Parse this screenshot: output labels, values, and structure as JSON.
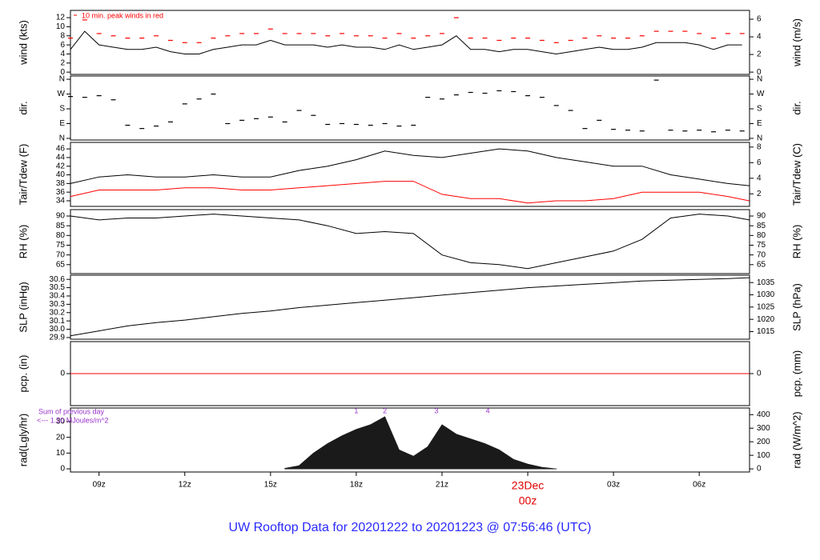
{
  "title": "UW Rooftop Data for 20201222  to  20201223 @ 07:56:46  (UTC)",
  "chart_data": [
    {
      "type": "line",
      "ylabel": "wind (kts)",
      "y2label": "wind (m/s)",
      "annotation": "10 min. peak winds in red",
      "xlim": [
        8,
        31.76
      ],
      "ylim": [
        -0.5,
        13.6
      ],
      "yticks": [
        0,
        2,
        4,
        6,
        8,
        10,
        12
      ],
      "y2lim": [
        -0.26,
        7.0
      ],
      "y2ticks": [
        0,
        2,
        4,
        6
      ],
      "series": [
        {
          "color": "#000000",
          "x": [
            8,
            8.5,
            9,
            9.5,
            10,
            10.5,
            11,
            11.5,
            12,
            12.5,
            13,
            13.5,
            14,
            14.5,
            15,
            15.5,
            16,
            16.5,
            17,
            17.5,
            18,
            18.5,
            19,
            19.5,
            20,
            20.5,
            21,
            21.5,
            22,
            22.5,
            23,
            23.5,
            24,
            24.5,
            25,
            25.5,
            26,
            26.5,
            27,
            27.5,
            28,
            28.5,
            29,
            29.5,
            30,
            30.5,
            31,
            31.5
          ],
          "values": [
            5,
            9,
            6,
            5.5,
            5,
            5,
            5.5,
            4.5,
            4,
            4,
            5,
            5.5,
            6,
            6,
            7,
            6,
            6,
            6,
            5.5,
            6,
            5.5,
            5.5,
            5,
            6,
            5,
            5.5,
            6,
            8,
            5,
            5,
            4.5,
            5,
            5,
            4.5,
            4,
            4.5,
            5,
            5.5,
            5,
            5,
            5.5,
            6.5,
            6.5,
            6.5,
            6,
            5,
            6,
            6
          ]
        },
        {
          "color": "#ff0000",
          "marker": "dash",
          "x": [
            8,
            8.5,
            9,
            9.5,
            10,
            10.5,
            11,
            11.5,
            12,
            12.5,
            13,
            13.5,
            14,
            14.5,
            15,
            15.5,
            16,
            16.5,
            17,
            17.5,
            18,
            18.5,
            19,
            19.5,
            20,
            20.5,
            21,
            21.5,
            22,
            22.5,
            23,
            23.5,
            24,
            24.5,
            25,
            25.5,
            26,
            26.5,
            27,
            27.5,
            28,
            28.5,
            29,
            29.5,
            30,
            30.5,
            31,
            31.5
          ],
          "values": [
            7.5,
            11.5,
            8.5,
            8,
            7.5,
            7.5,
            8,
            7,
            6.5,
            6.5,
            7.5,
            8,
            8.5,
            8.5,
            9.5,
            8.5,
            8.5,
            8.5,
            8,
            8.5,
            8,
            8,
            7.5,
            8.5,
            7.5,
            8,
            8.5,
            12,
            7.5,
            7.5,
            7,
            7.5,
            7.5,
            7,
            6.5,
            7,
            7.5,
            8,
            7.5,
            7.5,
            8,
            9,
            9,
            9,
            8.5,
            7.5,
            8.5,
            8.5
          ]
        }
      ]
    },
    {
      "type": "scatter",
      "ylabel": "dir.",
      "y2label": "dir.",
      "xlim": [
        8,
        31.76
      ],
      "ylim": [
        -10,
        380
      ],
      "yticks": [
        {
          "value": 0,
          "label": "N"
        },
        {
          "value": 90,
          "label": "E"
        },
        {
          "value": 180,
          "label": "S"
        },
        {
          "value": 270,
          "label": "W"
        },
        {
          "value": 360,
          "label": "N"
        }
      ],
      "y2lim": [
        -10,
        380
      ],
      "y2ticks": [
        {
          "value": 0,
          "label": "N"
        },
        {
          "value": 90,
          "label": "E"
        },
        {
          "value": 180,
          "label": "S"
        },
        {
          "value": 270,
          "label": "W"
        },
        {
          "value": 360,
          "label": "N"
        }
      ],
      "series": [
        {
          "color": "#000000",
          "marker": "dash",
          "x": [
            8,
            8.5,
            9,
            9.5,
            10,
            10.5,
            11,
            11.5,
            12,
            12.5,
            13,
            13.5,
            14,
            14.5,
            15,
            15.5,
            16,
            16.5,
            17,
            17.5,
            18,
            18.5,
            19,
            19.5,
            20,
            20.5,
            21,
            21.5,
            22,
            22.5,
            23,
            23.5,
            24,
            24.5,
            25,
            25.5,
            26,
            26.5,
            27,
            27.5,
            28,
            28.5,
            29,
            29.5,
            30,
            30.5,
            31,
            31.5
          ],
          "values": [
            255,
            250,
            260,
            235,
            80,
            60,
            75,
            100,
            210,
            240,
            270,
            90,
            110,
            120,
            130,
            100,
            170,
            140,
            85,
            90,
            85,
            80,
            90,
            75,
            80,
            250,
            240,
            265,
            280,
            275,
            290,
            285,
            260,
            250,
            200,
            170,
            60,
            110,
            55,
            50,
            45,
            355,
            50,
            45,
            50,
            40,
            50,
            45
          ]
        }
      ]
    },
    {
      "type": "line",
      "ylabel": "Tair/Tdew (F)",
      "y2label": "Tair/Tdew (C)",
      "xlim": [
        8,
        31.76
      ],
      "ylim": [
        32.7,
        47.5
      ],
      "yticks": [
        34,
        36,
        38,
        40,
        42,
        44,
        46
      ],
      "y2lim": [
        0.39,
        8.6
      ],
      "y2ticks": [
        2,
        4,
        6,
        8
      ],
      "series": [
        {
          "color": "#000000",
          "x": [
            8,
            9,
            10,
            11,
            12,
            13,
            14,
            15,
            16,
            17,
            18,
            19,
            20,
            21,
            22,
            23,
            24,
            25,
            26,
            27,
            28,
            29,
            30,
            31,
            31.75
          ],
          "values": [
            38,
            39.5,
            40,
            39.5,
            39.5,
            40,
            39.5,
            39.5,
            41,
            42,
            43.5,
            45.5,
            44.5,
            44,
            45,
            46,
            45.5,
            44,
            43,
            42,
            42,
            40,
            39,
            38,
            37.5
          ]
        },
        {
          "color": "#ff0000",
          "x": [
            8,
            9,
            10,
            11,
            12,
            13,
            14,
            15,
            16,
            17,
            18,
            19,
            20,
            21,
            22,
            23,
            24,
            25,
            26,
            27,
            28,
            29,
            30,
            31,
            31.75
          ],
          "values": [
            35,
            36.5,
            36.5,
            36.5,
            37,
            37,
            36.5,
            36.5,
            37,
            37.5,
            38,
            38.5,
            38.5,
            35.5,
            34.5,
            34.5,
            33.5,
            34,
            34,
            34.5,
            36,
            36,
            36,
            35,
            34
          ]
        }
      ]
    },
    {
      "type": "line",
      "ylabel": "RH (%)",
      "y2label": "RH (%)",
      "xlim": [
        8,
        31.76
      ],
      "ylim": [
        60.4,
        93.3
      ],
      "yticks": [
        65,
        70,
        75,
        80,
        85,
        90
      ],
      "y2lim": [
        60.4,
        93.3
      ],
      "y2ticks": [
        65,
        70,
        75,
        80,
        85,
        90
      ],
      "series": [
        {
          "color": "#000000",
          "x": [
            8,
            9,
            10,
            11,
            12,
            13,
            14,
            15,
            16,
            17,
            18,
            19,
            20,
            21,
            22,
            23,
            24,
            25,
            26,
            27,
            28,
            29,
            30,
            31,
            31.75
          ],
          "values": [
            90,
            88,
            89,
            89,
            90,
            91,
            90,
            89,
            88,
            85,
            81,
            82,
            81,
            70,
            66,
            65,
            63,
            66,
            69,
            72,
            78,
            89,
            91,
            90,
            88
          ]
        }
      ]
    },
    {
      "type": "line",
      "ylabel": "SLP (inHg)",
      "y2label": "SLP (hPa)",
      "xlim": [
        8,
        31.76
      ],
      "ylim": [
        29.88,
        30.65
      ],
      "yticks": [
        {
          "value": 29.9,
          "label": "29.9"
        },
        {
          "value": 30,
          "label": "30.0"
        },
        30.1,
        30.2,
        30.3,
        30.4,
        30.5,
        30.6
      ],
      "y2lim": [
        1011.9,
        1038.0
      ],
      "y2ticks": [
        1015,
        1020,
        1025,
        1030,
        1035
      ],
      "series": [
        {
          "color": "#000000",
          "x": [
            8,
            9,
            10,
            11,
            12,
            13,
            14,
            15,
            16,
            17,
            18,
            19,
            20,
            21,
            22,
            23,
            24,
            25,
            26,
            27,
            28,
            29,
            30,
            31,
            31.75
          ],
          "values": [
            29.92,
            29.98,
            30.04,
            30.08,
            30.11,
            30.15,
            30.19,
            30.22,
            30.26,
            30.29,
            30.32,
            30.35,
            30.38,
            30.41,
            30.44,
            30.47,
            30.5,
            30.52,
            30.54,
            30.56,
            30.58,
            30.59,
            30.6,
            30.61,
            30.62
          ]
        }
      ]
    },
    {
      "type": "line",
      "ylabel": "pcp. (in)",
      "y2label": "pcp. (mm)",
      "xlim": [
        8,
        31.76
      ],
      "ylim": [
        -1,
        1
      ],
      "yticks": [
        0
      ],
      "y2lim": [
        -25.4,
        25.4
      ],
      "y2ticks": [
        0
      ],
      "series": [
        {
          "color": "#ff0000",
          "x": [
            8,
            31.76
          ],
          "values": [
            0,
            0
          ]
        }
      ]
    },
    {
      "type": "area",
      "ylabel": "rad(Lgly/hr)",
      "y2label": "rad (W/m^2)",
      "annotations": [
        "Sum of previous day",
        "<--- 1.50 MJoules/m^2"
      ],
      "markers": {
        "x": [
          18,
          19,
          20.8,
          22.6
        ],
        "labels": [
          1,
          2,
          3,
          4
        ]
      },
      "xlim": [
        8,
        31.76
      ],
      "ylim": [
        -2,
        38.6
      ],
      "yticks": [
        0,
        10,
        20,
        30
      ],
      "y2lim": [
        -23,
        449
      ],
      "y2ticks": [
        0,
        100,
        200,
        300,
        400
      ],
      "xticks": [
        {
          "value": 9,
          "label": "09z"
        },
        {
          "value": 12,
          "label": "12z"
        },
        {
          "value": 15,
          "label": "15z"
        },
        {
          "value": 18,
          "label": "18z"
        },
        {
          "value": 21,
          "label": "21z"
        },
        {
          "value": 24,
          "label": "00z"
        },
        {
          "value": 27,
          "label": "03z"
        },
        {
          "value": 30,
          "label": "06z"
        }
      ],
      "date": {
        "value": 24,
        "label": "23Dec"
      },
      "series": [
        {
          "color": "#1a1a1a",
          "x": [
            15.5,
            16,
            16.5,
            17,
            17.5,
            18,
            18.5,
            19,
            19.5,
            20,
            20.5,
            21,
            21.5,
            22,
            22.5,
            23,
            23.5,
            24,
            24.5,
            25
          ],
          "values": [
            0.3,
            2,
            10,
            16,
            21,
            25,
            28,
            33,
            12,
            8,
            14,
            28,
            22,
            19,
            16,
            12,
            6,
            3,
            1,
            0
          ]
        }
      ]
    }
  ]
}
